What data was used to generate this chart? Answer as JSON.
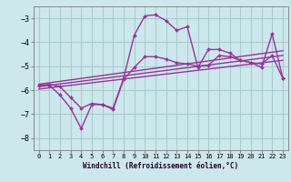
{
  "xlabel": "Windchill (Refroidissement éolien,°C)",
  "bg_color": "#cce8ec",
  "grid_color": "#aacccc",
  "line_color": "#993399",
  "xlim": [
    -0.5,
    23.5
  ],
  "ylim": [
    -8.5,
    -2.5
  ],
  "xticks": [
    0,
    1,
    2,
    3,
    4,
    5,
    6,
    7,
    8,
    9,
    10,
    11,
    12,
    13,
    14,
    15,
    16,
    17,
    18,
    19,
    20,
    21,
    22,
    23
  ],
  "yticks": [
    -8,
    -7,
    -6,
    -5,
    -4,
    -3
  ],
  "series": {
    "line1": {
      "x": [
        0,
        1,
        2,
        3,
        4,
        5,
        6,
        7,
        8,
        9,
        10,
        11,
        12,
        13,
        14,
        15,
        16,
        17,
        18,
        19,
        20,
        21,
        22,
        23
      ],
      "y": [
        -5.8,
        -5.8,
        -6.2,
        -6.75,
        -7.6,
        -6.6,
        -6.6,
        -6.75,
        -5.5,
        -3.7,
        -2.9,
        -2.85,
        -3.1,
        -3.5,
        -3.35,
        -5.05,
        -4.3,
        -4.3,
        -4.45,
        -4.75,
        -4.85,
        -5.05,
        -3.65,
        -5.5
      ]
    },
    "line2": {
      "x": [
        0,
        1,
        2,
        3,
        4,
        5,
        6,
        7,
        8,
        9,
        10,
        11,
        12,
        13,
        14,
        15,
        16,
        17,
        18,
        19,
        20,
        21,
        22,
        23
      ],
      "y": [
        -5.8,
        -5.75,
        -5.85,
        -6.3,
        -6.75,
        -6.55,
        -6.6,
        -6.8,
        -5.55,
        -5.05,
        -4.6,
        -4.6,
        -4.7,
        -4.85,
        -4.9,
        -5.0,
        -4.95,
        -4.55,
        -4.6,
        -4.75,
        -4.85,
        -4.9,
        -4.55,
        -5.5
      ]
    },
    "line3": {
      "x": [
        0,
        23
      ],
      "y": [
        -5.95,
        -4.75
      ]
    },
    "line4": {
      "x": [
        0,
        23
      ],
      "y": [
        -5.85,
        -4.55
      ]
    },
    "line5": {
      "x": [
        0,
        23
      ],
      "y": [
        -5.75,
        -4.35
      ]
    }
  }
}
